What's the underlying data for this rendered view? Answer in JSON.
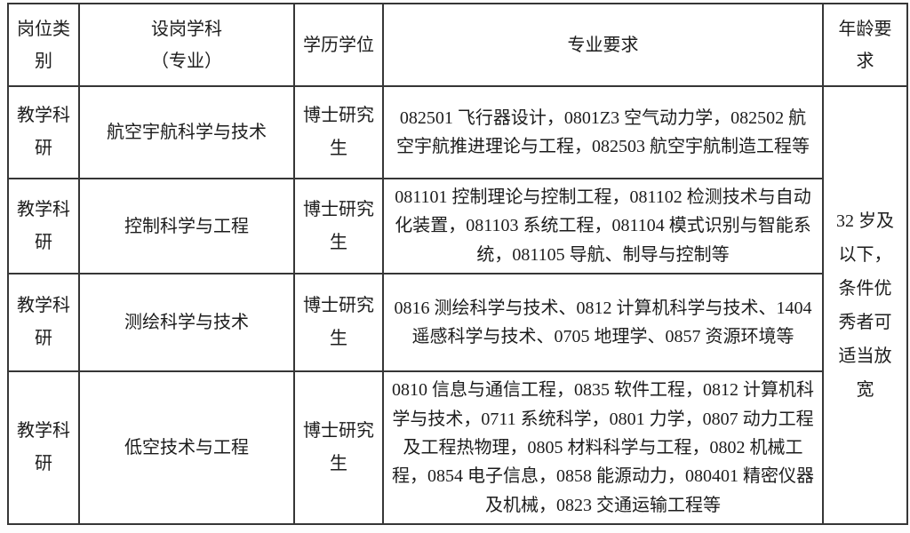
{
  "table": {
    "headers": [
      "岗位类别",
      "设岗学科\n（专业）",
      "学历学位",
      "专业要求",
      "年龄要求"
    ],
    "rows": [
      {
        "category": "教学科研",
        "discipline": "航空宇航科学与技术",
        "degree": "博士研究生",
        "requirements": "082501 飞行器设计，0801Z3 空气动力学，082502 航空宇航推进理论与工程，082503 航空宇航制造工程等"
      },
      {
        "category": "教学科研",
        "discipline": "控制科学与工程",
        "degree": "博士研究生",
        "requirements": "081101 控制理论与控制工程，081102 检测技术与自动化装置，081103 系统工程，081104 模式识别与智能系统，081105 导航、制导与控制等"
      },
      {
        "category": "教学科研",
        "discipline": "测绘科学与技术",
        "degree": "博士研究生",
        "requirements": "0816 测绘科学与技术、0812 计算机科学与技术、1404 遥感科学与技术、0705 地理学、0857 资源环境等"
      },
      {
        "category": "教学科研",
        "discipline": "低空技术与工程",
        "degree": "博士研究生",
        "requirements": "0810 信息与通信工程，0835 软件工程，0812 计算机科学与技术，0711 系统科学，0801 力学，0807 动力工程及工程热物理，0805 材料科学与工程，0802 机械工程，0854 电子信息，0858 能源动力，080401 精密仪器及机械，0823 交通运输工程等"
      }
    ],
    "age_requirement": "32 岁及以下，条件优秀者可适当放宽"
  },
  "colors": {
    "border": "#363636",
    "text": "#1c1c1c",
    "background": "#ffffff"
  }
}
